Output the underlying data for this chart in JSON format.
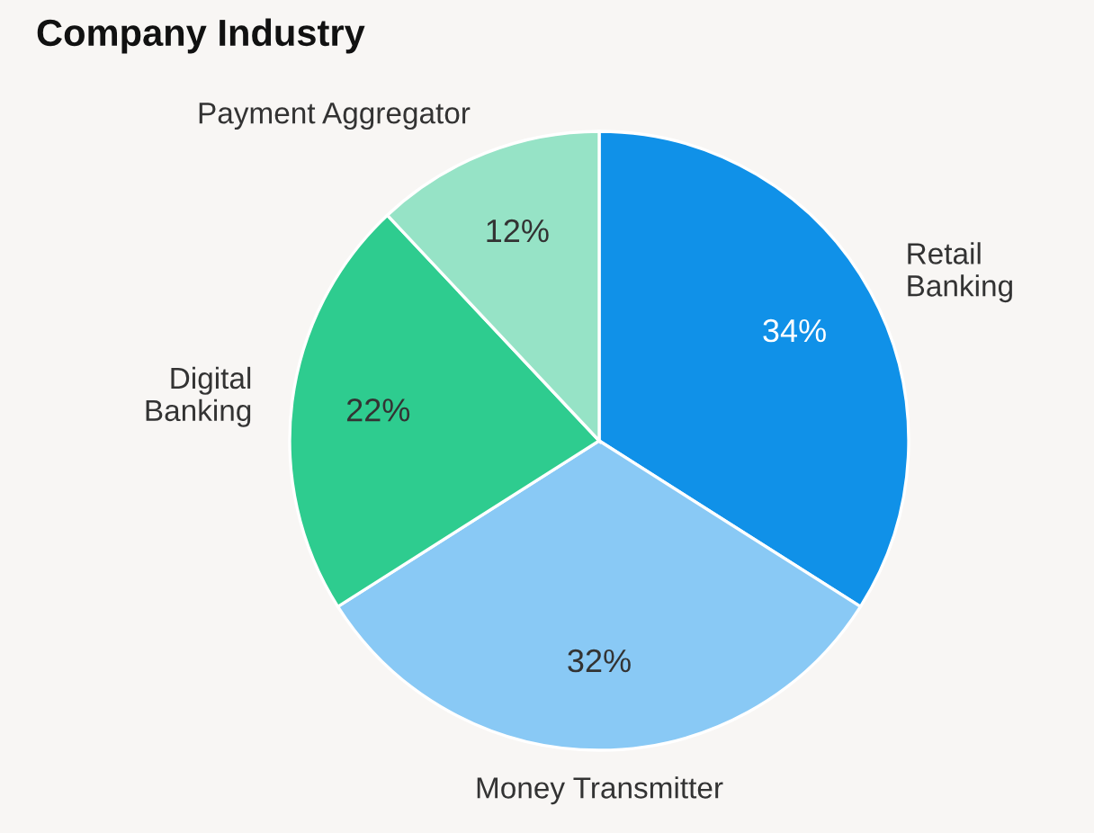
{
  "chart_data": {
    "type": "pie",
    "title": "Company Industry",
    "categories": [
      "Retail Banking",
      "Money Transmitter",
      "Digital Banking",
      "Payment Aggregator"
    ],
    "values": [
      34,
      32,
      22,
      12
    ],
    "colors": [
      "#1091e8",
      "#89c9f5",
      "#2ecc8f",
      "#96e3c6"
    ],
    "value_labels": [
      "34%",
      "32%",
      "22%",
      "12%"
    ]
  }
}
